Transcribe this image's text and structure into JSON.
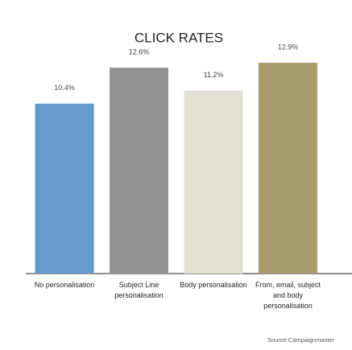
{
  "chart_data": {
    "type": "bar",
    "title": "CLICK RATES",
    "categories": [
      "No personalisation",
      "Subject Line personalisation",
      "Body personalisation",
      "From, email, subject and body personalisation"
    ],
    "values": [
      10.4,
      12.6,
      11.2,
      12.9
    ],
    "value_labels": [
      "10.4%",
      "12.6%",
      "11.2%",
      "12.9%"
    ],
    "colors": [
      "#6699cc",
      "#939393",
      "#e3e0d2",
      "#a89c6b"
    ],
    "source": "Source Campaignmaster"
  }
}
